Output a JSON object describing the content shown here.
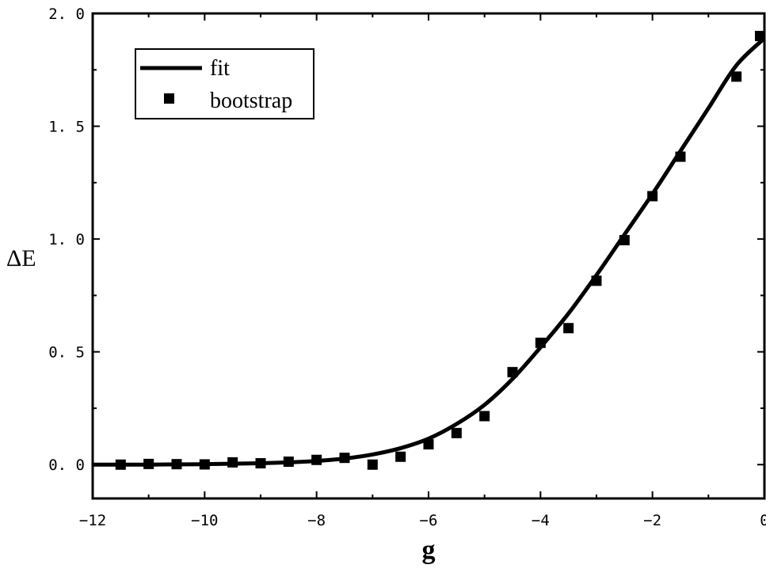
{
  "chart_data": {
    "type": "scatter",
    "title": "",
    "xlabel": "g",
    "ylabel": "ΔE",
    "xlim": [
      -12,
      0
    ],
    "ylim": [
      -0.15,
      2.0
    ],
    "x_ticks": [
      -12,
      -10,
      -8,
      -6,
      -4,
      -2,
      0
    ],
    "x_tick_labels": [
      "−12",
      "−10",
      "−8",
      "−6",
      "−4",
      "−2",
      "0"
    ],
    "y_ticks": [
      0.0,
      0.5,
      1.0,
      1.5,
      2.0
    ],
    "y_tick_labels": [
      "0. 0",
      "0. 5",
      "1. 0",
      "1. 5",
      "2. 0"
    ],
    "grid": false,
    "legend_position": "top-left",
    "series": [
      {
        "name": "fit",
        "kind": "line",
        "color": "#000000",
        "x": [
          -12,
          -11.5,
          -11,
          -10.5,
          -10,
          -9.5,
          -9,
          -8.5,
          -8,
          -7.5,
          -7,
          -6.5,
          -6,
          -5.5,
          -5,
          -4.5,
          -4,
          -3.5,
          -3,
          -2.5,
          -2,
          -1.5,
          -1,
          -0.5,
          0
        ],
        "y": [
          0.0,
          0.0,
          0.0,
          0.001,
          0.002,
          0.004,
          0.006,
          0.01,
          0.016,
          0.027,
          0.045,
          0.073,
          0.115,
          0.18,
          0.265,
          0.38,
          0.52,
          0.67,
          0.84,
          1.02,
          1.2,
          1.39,
          1.58,
          1.77,
          1.89
        ]
      },
      {
        "name": "bootstrap",
        "kind": "scatter",
        "marker": "square",
        "color": "#000000",
        "x": [
          -11.5,
          -11,
          -10.5,
          -10,
          -9.5,
          -9,
          -8.5,
          -8,
          -7.5,
          -7,
          -6.5,
          -6,
          -5.5,
          -5,
          -4.5,
          -4,
          -3.5,
          -3,
          -2.5,
          -2,
          -1.5,
          -0.5,
          0
        ],
        "y": [
          0.0,
          0.003,
          0.002,
          0.001,
          0.01,
          0.006,
          0.013,
          0.021,
          0.03,
          0.0,
          0.035,
          0.09,
          0.14,
          0.215,
          0.41,
          0.54,
          0.605,
          0.815,
          0.995,
          1.19,
          1.365,
          1.72,
          1.9
        ]
      }
    ]
  }
}
